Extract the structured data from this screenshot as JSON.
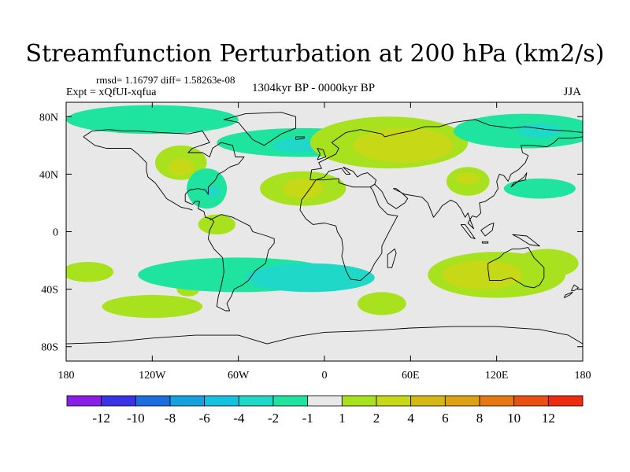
{
  "title": "Streamfunction Perturbation at 200 hPa (km2/s)",
  "stats": "rmsd= 1.16797 diff= 1.58263e-08",
  "experiment": "Expt = xQfUI-xqfua",
  "period": "1304kyr BP - 0000kyr BP",
  "season": "JJA",
  "map": {
    "lon_range": [
      -180,
      180
    ],
    "lat_range": [
      -90,
      90
    ],
    "lat_ticks": [
      {
        "value": 80,
        "label": "80N"
      },
      {
        "value": 40,
        "label": "40N"
      },
      {
        "value": 0,
        "label": "0"
      },
      {
        "value": -40,
        "label": "40S"
      },
      {
        "value": -80,
        "label": "80S"
      }
    ],
    "lon_ticks": [
      {
        "value": -180,
        "label": "180"
      },
      {
        "value": -120,
        "label": "120W"
      },
      {
        "value": -60,
        "label": "60W"
      },
      {
        "value": 0,
        "label": "0"
      },
      {
        "value": 60,
        "label": "60E"
      },
      {
        "value": 120,
        "label": "120E"
      },
      {
        "value": 180,
        "label": "180"
      }
    ]
  },
  "colorbar": {
    "colors": [
      "#8a1ee8",
      "#3a32e6",
      "#1b6de0",
      "#16a0e0",
      "#14c2e0",
      "#20d8c8",
      "#1ee4a0",
      "#e8e8e8",
      "#a8e21e",
      "#c6d816",
      "#d6b814",
      "#e0a014",
      "#e6780f",
      "#ea5010",
      "#ee2a10"
    ],
    "labels": [
      "-12",
      "-10",
      "-8",
      "-6",
      "-4",
      "-2",
      "-1",
      "1",
      "2",
      "4",
      "6",
      "8",
      "10",
      "12"
    ]
  },
  "blobs": [
    {
      "lon": -165,
      "lat": -28,
      "rlon": 18,
      "rlat": 7,
      "level": 1
    },
    {
      "lon": -120,
      "lat": -52,
      "rlon": 35,
      "rlat": 8,
      "level": 1
    },
    {
      "lon": -95,
      "lat": -40,
      "rlon": 8,
      "rlat": 5,
      "level": 1
    },
    {
      "lon": -60,
      "lat": -30,
      "rlon": 70,
      "rlat": 12,
      "level": -1
    },
    {
      "lon": -10,
      "lat": -32,
      "rlon": 45,
      "rlat": 10,
      "level": -2
    },
    {
      "lon": 40,
      "lat": -50,
      "rlon": 17,
      "rlat": 8,
      "level": 1
    },
    {
      "lon": 120,
      "lat": -30,
      "rlon": 48,
      "rlat": 16,
      "level": 1
    },
    {
      "lon": 110,
      "lat": -30,
      "rlon": 28,
      "rlat": 10,
      "level": 2
    },
    {
      "lon": 155,
      "lat": -22,
      "rlon": 22,
      "rlat": 10,
      "level": 1
    },
    {
      "lon": -120,
      "lat": 78,
      "rlon": 60,
      "rlat": 10,
      "level": -1
    },
    {
      "lon": -100,
      "lat": 48,
      "rlon": 18,
      "rlat": 12,
      "level": 1
    },
    {
      "lon": -100,
      "lat": 45,
      "rlon": 9,
      "rlat": 6,
      "level": 2
    },
    {
      "lon": -82,
      "lat": 30,
      "rlon": 14,
      "rlat": 14,
      "level": -1
    },
    {
      "lon": -78,
      "lat": 28,
      "rlon": 5,
      "rlat": 4,
      "level": -2
    },
    {
      "lon": -75,
      "lat": 5,
      "rlon": 13,
      "rlat": 7,
      "level": 1
    },
    {
      "lon": -15,
      "lat": 62,
      "rlon": 60,
      "rlat": 10,
      "level": -1
    },
    {
      "lon": -18,
      "lat": 60,
      "rlon": 18,
      "rlat": 5,
      "level": -2
    },
    {
      "lon": -15,
      "lat": 30,
      "rlon": 30,
      "rlat": 12,
      "level": 1
    },
    {
      "lon": -15,
      "lat": 30,
      "rlon": 14,
      "rlat": 7,
      "level": 2
    },
    {
      "lon": 45,
      "lat": 62,
      "rlon": 55,
      "rlat": 18,
      "level": 1
    },
    {
      "lon": 55,
      "lat": 60,
      "rlon": 35,
      "rlat": 12,
      "level": 2
    },
    {
      "lon": 140,
      "lat": 70,
      "rlon": 50,
      "rlat": 12,
      "level": -1
    },
    {
      "lon": 150,
      "lat": 70,
      "rlon": 15,
      "rlat": 5,
      "level": -2
    },
    {
      "lon": 100,
      "lat": 35,
      "rlon": 15,
      "rlat": 10,
      "level": 1
    },
    {
      "lon": 100,
      "lat": 37,
      "rlon": 8,
      "rlat": 4,
      "level": 2
    },
    {
      "lon": 150,
      "lat": 30,
      "rlon": 25,
      "rlat": 7,
      "level": -1
    }
  ],
  "coastlines": [
    [
      [
        -168,
        66
      ],
      [
        -162,
        70
      ],
      [
        -150,
        71
      ],
      [
        -140,
        70
      ],
      [
        -130,
        70
      ],
      [
        -115,
        69
      ],
      [
        -95,
        68
      ],
      [
        -85,
        70
      ],
      [
        -80,
        62
      ],
      [
        -92,
        58
      ],
      [
        -95,
        55
      ],
      [
        -85,
        55
      ],
      [
        -80,
        52
      ],
      [
        -78,
        58
      ],
      [
        -72,
        62
      ],
      [
        -64,
        60
      ],
      [
        -62,
        52
      ],
      [
        -56,
        52
      ],
      [
        -60,
        47
      ],
      [
        -66,
        45
      ],
      [
        -70,
        42
      ],
      [
        -74,
        40
      ],
      [
        -76,
        36
      ],
      [
        -78,
        34
      ],
      [
        -81,
        31
      ],
      [
        -81,
        26
      ],
      [
        -83,
        29
      ],
      [
        -88,
        30
      ],
      [
        -94,
        29
      ],
      [
        -97,
        26
      ],
      [
        -97,
        21
      ],
      [
        -92,
        19
      ],
      [
        -90,
        21
      ],
      [
        -87,
        21
      ],
      [
        -88,
        16
      ],
      [
        -84,
        14
      ],
      [
        -83,
        10
      ],
      [
        -79,
        9
      ],
      [
        -77,
        7
      ],
      [
        -80,
        1
      ],
      [
        -81,
        -5
      ],
      [
        -77,
        -12
      ],
      [
        -71,
        -18
      ],
      [
        -70,
        -28
      ],
      [
        -72,
        -38
      ],
      [
        -74,
        -45
      ],
      [
        -75,
        -52
      ],
      [
        -69,
        -55
      ],
      [
        -66,
        -55
      ],
      [
        -68,
        -50
      ],
      [
        -65,
        -45
      ],
      [
        -63,
        -40
      ],
      [
        -57,
        -37
      ],
      [
        -53,
        -34
      ],
      [
        -48,
        -27
      ],
      [
        -41,
        -22
      ],
      [
        -39,
        -13
      ],
      [
        -35,
        -8
      ],
      [
        -35,
        -5
      ],
      [
        -40,
        -3
      ],
      [
        -50,
        0
      ],
      [
        -52,
        4
      ],
      [
        -60,
        8
      ],
      [
        -64,
        10
      ],
      [
        -72,
        12
      ],
      [
        -76,
        10
      ],
      [
        -80,
        8
      ]
    ],
    [
      [
        -123,
        38
      ],
      [
        -118,
        34
      ],
      [
        -115,
        30
      ],
      [
        -110,
        23
      ],
      [
        -105,
        20
      ],
      [
        -100,
        17
      ],
      [
        -95,
        16
      ],
      [
        -92,
        15
      ]
    ],
    [
      [
        -168,
        66
      ],
      [
        -160,
        60
      ],
      [
        -152,
        58
      ],
      [
        -135,
        58
      ],
      [
        -130,
        54
      ],
      [
        -124,
        48
      ],
      [
        -124,
        42
      ],
      [
        -123,
        38
      ]
    ],
    [
      [
        -55,
        82
      ],
      [
        -30,
        83
      ],
      [
        -20,
        80
      ],
      [
        -20,
        72
      ],
      [
        -30,
        68
      ],
      [
        -42,
        60
      ],
      [
        -50,
        64
      ],
      [
        -55,
        70
      ],
      [
        -60,
        76
      ],
      [
        -70,
        78
      ],
      [
        -55,
        82
      ]
    ],
    [
      [
        -10,
        36
      ],
      [
        -9,
        43
      ],
      [
        -2,
        44
      ],
      [
        -4,
        48
      ],
      [
        2,
        51
      ],
      [
        8,
        54
      ],
      [
        10,
        58
      ],
      [
        5,
        62
      ],
      [
        15,
        69
      ],
      [
        25,
        71
      ],
      [
        40,
        68
      ],
      [
        42,
        66
      ],
      [
        50,
        68
      ],
      [
        60,
        70
      ],
      [
        70,
        73
      ],
      [
        80,
        73
      ],
      [
        90,
        76
      ],
      [
        105,
        78
      ],
      [
        115,
        74
      ],
      [
        130,
        72
      ],
      [
        140,
        73
      ],
      [
        155,
        71
      ],
      [
        170,
        70
      ],
      [
        180,
        69
      ]
    ],
    [
      [
        -10,
        36
      ],
      [
        -6,
        36
      ],
      [
        0,
        38
      ],
      [
        3,
        42
      ],
      [
        12,
        44
      ],
      [
        15,
        40
      ],
      [
        18,
        40
      ],
      [
        13,
        45
      ],
      [
        20,
        42
      ],
      [
        23,
        38
      ],
      [
        26,
        40
      ],
      [
        30,
        41
      ],
      [
        36,
        36
      ],
      [
        35,
        33
      ],
      [
        32,
        31
      ],
      [
        20,
        31
      ],
      [
        10,
        34
      ],
      [
        10,
        37
      ],
      [
        0,
        36
      ],
      [
        -10,
        36
      ]
    ],
    [
      [
        -6,
        36
      ],
      [
        -10,
        30
      ],
      [
        -16,
        22
      ],
      [
        -17,
        15
      ],
      [
        -13,
        9
      ],
      [
        -8,
        5
      ],
      [
        0,
        6
      ],
      [
        8,
        4
      ],
      [
        9,
        0
      ],
      [
        12,
        -5
      ],
      [
        13,
        -12
      ],
      [
        12,
        -17
      ],
      [
        15,
        -27
      ],
      [
        18,
        -33
      ],
      [
        25,
        -34
      ],
      [
        32,
        -28
      ],
      [
        35,
        -22
      ],
      [
        40,
        -15
      ],
      [
        40,
        -10
      ],
      [
        44,
        -2
      ],
      [
        51,
        11
      ],
      [
        44,
        12
      ],
      [
        38,
        18
      ],
      [
        34,
        28
      ],
      [
        32,
        31
      ]
    ],
    [
      [
        32,
        31
      ],
      [
        35,
        33
      ],
      [
        40,
        28
      ],
      [
        44,
        20
      ],
      [
        50,
        16
      ],
      [
        56,
        20
      ],
      [
        58,
        23
      ],
      [
        55,
        26
      ],
      [
        50,
        30
      ],
      [
        48,
        30
      ],
      [
        56,
        26
      ],
      [
        62,
        25
      ],
      [
        68,
        24
      ],
      [
        72,
        20
      ],
      [
        76,
        10
      ],
      [
        80,
        15
      ],
      [
        82,
        18
      ],
      [
        88,
        22
      ],
      [
        92,
        20
      ],
      [
        95,
        16
      ],
      [
        98,
        10
      ],
      [
        100,
        13
      ],
      [
        102,
        7
      ],
      [
        104,
        2
      ],
      [
        100,
        6
      ],
      [
        103,
        11
      ],
      [
        106,
        10
      ],
      [
        109,
        13
      ],
      [
        108,
        20
      ],
      [
        112,
        21
      ],
      [
        118,
        25
      ],
      [
        121,
        30
      ],
      [
        120,
        35
      ],
      [
        122,
        40
      ],
      [
        125,
        39
      ],
      [
        128,
        35
      ],
      [
        130,
        40
      ],
      [
        135,
        43
      ],
      [
        140,
        48
      ],
      [
        142,
        53
      ],
      [
        138,
        55
      ],
      [
        137,
        60
      ],
      [
        145,
        60
      ],
      [
        155,
        59
      ],
      [
        160,
        62
      ],
      [
        163,
        65
      ],
      [
        172,
        65
      ],
      [
        180,
        66
      ]
    ],
    [
      [
        114,
        -22
      ],
      [
        114,
        -26
      ],
      [
        115,
        -34
      ],
      [
        123,
        -34
      ],
      [
        130,
        -32
      ],
      [
        135,
        -35
      ],
      [
        140,
        -38
      ],
      [
        146,
        -39
      ],
      [
        150,
        -37
      ],
      [
        153,
        -32
      ],
      [
        153,
        -25
      ],
      [
        146,
        -18
      ],
      [
        142,
        -11
      ],
      [
        136,
        -12
      ],
      [
        131,
        -12
      ],
      [
        125,
        -15
      ],
      [
        122,
        -18
      ],
      [
        114,
        -22
      ]
    ],
    [
      [
        -5,
        50
      ],
      [
        -3,
        54
      ],
      [
        -5,
        58
      ],
      [
        -1,
        57
      ],
      [
        1,
        52
      ],
      [
        -5,
        50
      ]
    ],
    [
      [
        130,
        31
      ],
      [
        132,
        34
      ],
      [
        136,
        35
      ],
      [
        140,
        36
      ],
      [
        141,
        41
      ],
      [
        139,
        38
      ],
      [
        135,
        35
      ],
      [
        130,
        31
      ]
    ],
    [
      [
        -180,
        -78
      ],
      [
        -150,
        -77
      ],
      [
        -120,
        -74
      ],
      [
        -90,
        -72
      ],
      [
        -60,
        -72
      ],
      [
        -40,
        -78
      ],
      [
        -20,
        -73
      ],
      [
        0,
        -70
      ],
      [
        30,
        -69
      ],
      [
        60,
        -67
      ],
      [
        90,
        -66
      ],
      [
        120,
        -66
      ],
      [
        150,
        -68
      ],
      [
        170,
        -72
      ],
      [
        180,
        -78
      ]
    ],
    [
      [
        44,
        -25
      ],
      [
        47,
        -25
      ],
      [
        50,
        -15
      ],
      [
        49,
        -12
      ],
      [
        44,
        -16
      ],
      [
        44,
        -25
      ]
    ],
    [
      [
        95,
        5
      ],
      [
        98,
        5
      ],
      [
        105,
        -5
      ],
      [
        102,
        -4
      ],
      [
        95,
        5
      ]
    ],
    [
      [
        110,
        -8
      ],
      [
        114,
        -8
      ],
      [
        114,
        -7
      ],
      [
        110,
        -7
      ],
      [
        110,
        -8
      ]
    ],
    [
      [
        109,
        1
      ],
      [
        112,
        -3
      ],
      [
        117,
        1
      ],
      [
        118,
        6
      ],
      [
        115,
        5
      ],
      [
        109,
        1
      ]
    ],
    [
      [
        131,
        -2
      ],
      [
        141,
        -3
      ],
      [
        150,
        -10
      ],
      [
        143,
        -9
      ],
      [
        135,
        -4
      ],
      [
        131,
        -2
      ]
    ],
    [
      [
        172,
        -41
      ],
      [
        174,
        -37
      ],
      [
        177,
        -39
      ],
      [
        174,
        -41
      ],
      [
        172,
        -41
      ]
    ],
    [
      [
        167,
        -46
      ],
      [
        171,
        -44
      ],
      [
        173,
        -42
      ],
      [
        168,
        -44
      ],
      [
        167,
        -46
      ]
    ],
    [
      [
        -20,
        64
      ],
      [
        -14,
        65
      ],
      [
        -14,
        66
      ],
      [
        -20,
        66
      ],
      [
        -20,
        64
      ]
    ]
  ]
}
